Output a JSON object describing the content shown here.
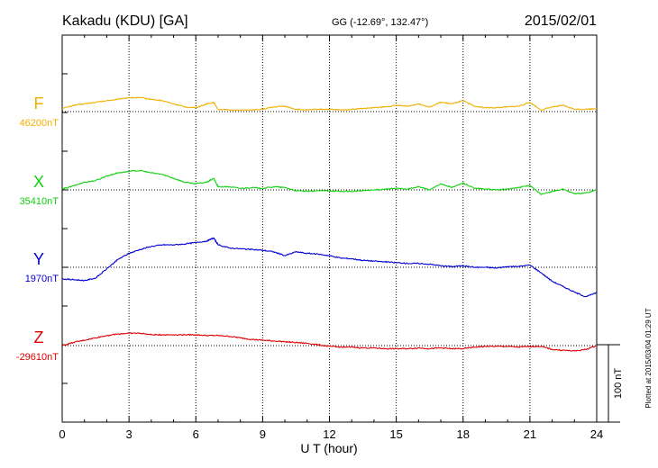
{
  "header": {
    "station": "Kakadu (KDU)  [GA]",
    "coords": "GG (-12.69°, 132.47°)",
    "date": "2015/02/01"
  },
  "footer_note": "Plotted at 2015/03/04 01:29 UT",
  "scale_bar_label": "100 nT",
  "colors": {
    "F": "#f0b000",
    "X": "#10d010",
    "Y": "#0000d0",
    "Z": "#e00000",
    "axis": "#000000"
  },
  "chart_data": {
    "type": "line",
    "xlabel": "U T (hour)",
    "xlim": [
      0,
      24
    ],
    "xticks": [
      "0",
      "3",
      "6",
      "9",
      "12",
      "15",
      "18",
      "21",
      "24"
    ],
    "scale_nT": 100,
    "grid": true,
    "series": [
      {
        "name": "F",
        "baseline_label": "46200nT",
        "baseline": 46200,
        "x": [
          0,
          0.5,
          1,
          1.5,
          2,
          2.5,
          3,
          3.5,
          4,
          4.5,
          5,
          5.5,
          6,
          6.5,
          6.8,
          7,
          7.5,
          8,
          8.5,
          9,
          9.5,
          10,
          10.5,
          11,
          11.5,
          12,
          12.5,
          13,
          13.5,
          14,
          14.5,
          15,
          15.5,
          16,
          16.5,
          17,
          17.5,
          18,
          18.5,
          19,
          19.5,
          20,
          20.5,
          21,
          21.5,
          22,
          22.5,
          23,
          23.5,
          24
        ],
        "values": [
          46204,
          46208,
          46210,
          46212,
          46214,
          46216,
          46218,
          46218,
          46216,
          46214,
          46210,
          46206,
          46205,
          46210,
          46212,
          46203,
          46202,
          46202,
          46202,
          46203,
          46206,
          46207,
          46203,
          46202,
          46203,
          46203,
          46202,
          46203,
          46204,
          46205,
          46206,
          46208,
          46207,
          46210,
          46206,
          46212,
          46210,
          46214,
          46207,
          46205,
          46205,
          46206,
          46207,
          46212,
          46202,
          46206,
          46208,
          46203,
          46203,
          46204
        ]
      },
      {
        "name": "X",
        "baseline_label": "35410nT",
        "baseline": 35410,
        "x": [
          0,
          0.5,
          1,
          1.5,
          2,
          2.5,
          3,
          3.5,
          4,
          4.5,
          5,
          5.5,
          6,
          6.5,
          6.8,
          7,
          7.5,
          8,
          8.5,
          9,
          9.5,
          10,
          10.5,
          11,
          11.5,
          12,
          12.5,
          13,
          13.5,
          14,
          14.5,
          15,
          15.5,
          16,
          16.5,
          17,
          17.5,
          18,
          18.5,
          19,
          19.5,
          20,
          20.5,
          21,
          21.5,
          22,
          22.5,
          23,
          23.5,
          24
        ],
        "values": [
          35411,
          35415,
          35420,
          35422,
          35428,
          35432,
          35434,
          35435,
          35432,
          35430,
          35425,
          35420,
          35418,
          35420,
          35425,
          35414,
          35414,
          35412,
          35413,
          35412,
          35414,
          35413,
          35409,
          35408,
          35409,
          35409,
          35408,
          35408,
          35409,
          35410,
          35411,
          35412,
          35411,
          35414,
          35410,
          35418,
          35413,
          35419,
          35412,
          35411,
          35410,
          35411,
          35413,
          35416,
          35404,
          35408,
          35411,
          35405,
          35406,
          35410
        ]
      },
      {
        "name": "Y",
        "baseline_label": "1970nT",
        "baseline": 1970,
        "x": [
          0,
          0.5,
          1,
          1.5,
          2,
          2.5,
          3,
          3.5,
          4,
          4.5,
          5,
          5.5,
          6,
          6.5,
          6.8,
          7,
          7.5,
          8,
          8.5,
          9,
          9.5,
          10,
          10.5,
          11,
          11.5,
          12,
          12.5,
          13,
          13.5,
          14,
          14.5,
          15,
          15.5,
          16,
          16.5,
          17,
          17.5,
          18,
          18.5,
          19,
          19.5,
          20,
          20.5,
          21,
          21.5,
          22,
          22.5,
          23,
          23.5,
          24
        ],
        "values": [
          1955,
          1954,
          1953,
          1956,
          1968,
          1980,
          1988,
          1993,
          1997,
          1999,
          1999,
          2000,
          2002,
          2004,
          2008,
          1999,
          1995,
          1994,
          1993,
          1992,
          1990,
          1985,
          1990,
          1988,
          1987,
          1985,
          1982,
          1981,
          1979,
          1978,
          1977,
          1976,
          1975,
          1975,
          1974,
          1972,
          1971,
          1972,
          1970,
          1970,
          1969,
          1971,
          1971,
          1973,
          1963,
          1952,
          1945,
          1938,
          1932,
          1937
        ]
      },
      {
        "name": "Z",
        "baseline_label": "-29610nT",
        "baseline": -29610,
        "x": [
          0,
          0.5,
          1,
          1.5,
          2,
          2.5,
          3,
          3.5,
          4,
          4.5,
          5,
          5.5,
          6,
          6.5,
          7,
          7.5,
          8,
          8.5,
          9,
          9.5,
          10,
          10.5,
          11,
          11.5,
          12,
          12.5,
          13,
          13.5,
          14,
          14.5,
          15,
          15.5,
          16,
          16.5,
          17,
          17.5,
          18,
          18.5,
          19,
          19.5,
          20,
          20.5,
          21,
          21.5,
          22,
          22.5,
          23,
          23.5,
          24
        ],
        "values": [
          -29610,
          -29606,
          -29603,
          -29600,
          -29597,
          -29595,
          -29594,
          -29594,
          -29596,
          -29596,
          -29596,
          -29596,
          -29596,
          -29597,
          -29597,
          -29598,
          -29600,
          -29602,
          -29603,
          -29604,
          -29605,
          -29606,
          -29607,
          -29609,
          -29611,
          -29612,
          -29612,
          -29613,
          -29613,
          -29614,
          -29614,
          -29614,
          -29613,
          -29614,
          -29613,
          -29614,
          -29614,
          -29612,
          -29611,
          -29611,
          -29611,
          -29612,
          -29611,
          -29611,
          -29615,
          -29616,
          -29617,
          -29615,
          -29610
        ]
      }
    ]
  }
}
